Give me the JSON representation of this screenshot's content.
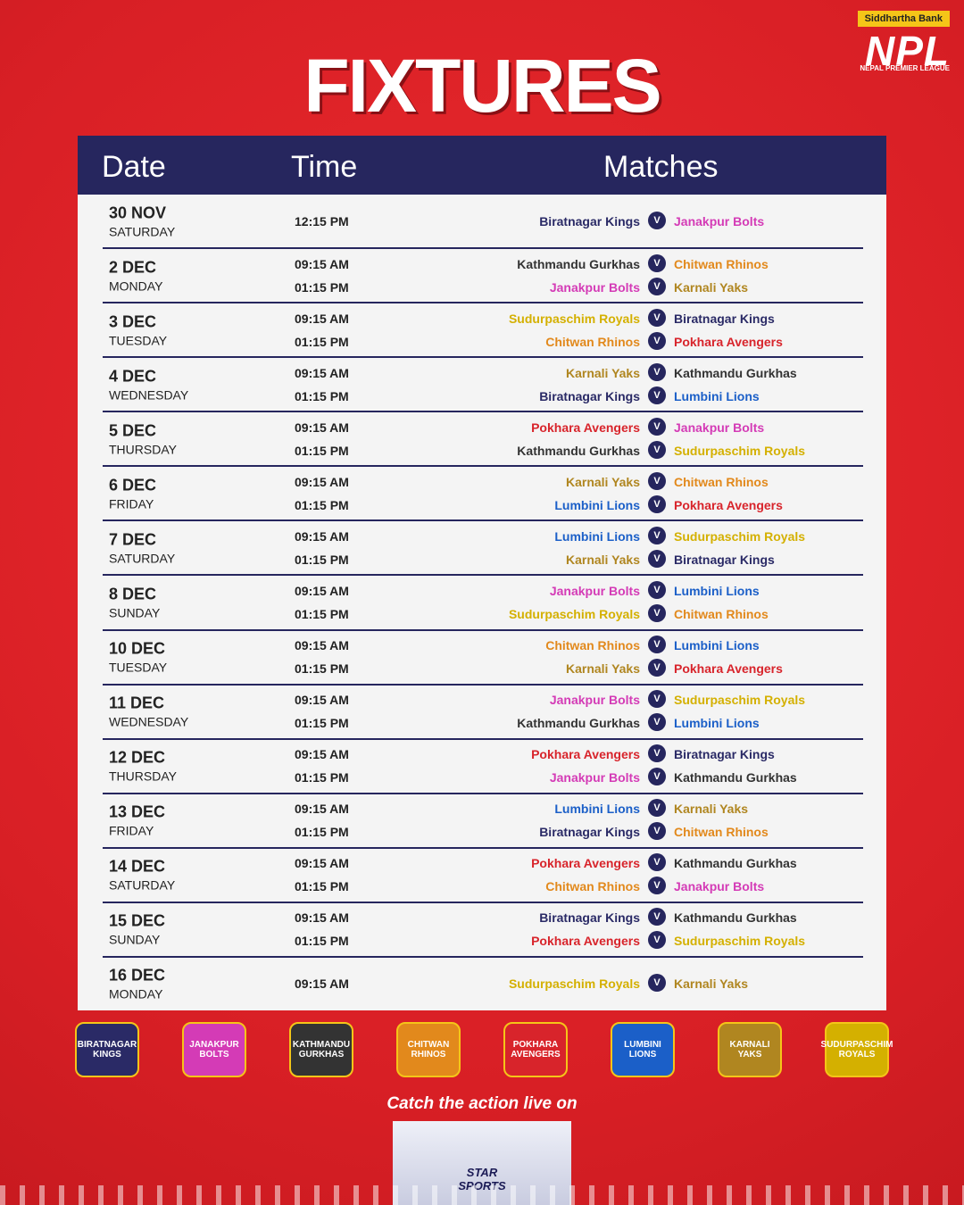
{
  "header": {
    "sponsor": "Siddhartha Bank",
    "league_short": "NPL",
    "league_full": "NEPAL PREMIER LEAGUE",
    "title": "FIXTURES"
  },
  "table": {
    "columns": [
      "Date",
      "Time",
      "Matches"
    ],
    "versus_label": "V",
    "rows": [
      {
        "date": "30 NOV",
        "day": "SATURDAY",
        "matches": [
          {
            "time": "12:15 PM",
            "home": "Biratnagar Kings",
            "away": "Janakpur Bolts"
          }
        ]
      },
      {
        "date": "2 DEC",
        "day": "MONDAY",
        "matches": [
          {
            "time": "09:15 AM",
            "home": "Kathmandu Gurkhas",
            "away": "Chitwan Rhinos"
          },
          {
            "time": "01:15 PM",
            "home": "Janakpur Bolts",
            "away": "Karnali Yaks"
          }
        ]
      },
      {
        "date": "3 DEC",
        "day": "TUESDAY",
        "matches": [
          {
            "time": "09:15 AM",
            "home": "Sudurpaschim Royals",
            "away": "Biratnagar Kings"
          },
          {
            "time": "01:15 PM",
            "home": "Chitwan Rhinos",
            "away": "Pokhara Avengers"
          }
        ]
      },
      {
        "date": "4 DEC",
        "day": "WEDNESDAY",
        "matches": [
          {
            "time": "09:15 AM",
            "home": "Karnali Yaks",
            "away": "Kathmandu Gurkhas"
          },
          {
            "time": "01:15 PM",
            "home": "Biratnagar Kings",
            "away": "Lumbini Lions"
          }
        ]
      },
      {
        "date": "5 DEC",
        "day": "THURSDAY",
        "matches": [
          {
            "time": "09:15 AM",
            "home": "Pokhara Avengers",
            "away": "Janakpur Bolts"
          },
          {
            "time": "01:15 PM",
            "home": "Kathmandu Gurkhas",
            "away": "Sudurpaschim Royals"
          }
        ]
      },
      {
        "date": "6 DEC",
        "day": "FRIDAY",
        "matches": [
          {
            "time": "09:15 AM",
            "home": "Karnali Yaks",
            "away": "Chitwan Rhinos"
          },
          {
            "time": "01:15 PM",
            "home": "Lumbini Lions",
            "away": "Pokhara Avengers"
          }
        ]
      },
      {
        "date": "7 DEC",
        "day": "SATURDAY",
        "matches": [
          {
            "time": "09:15 AM",
            "home": "Lumbini Lions",
            "away": "Sudurpaschim Royals"
          },
          {
            "time": "01:15 PM",
            "home": "Karnali Yaks",
            "away": "Biratnagar Kings"
          }
        ]
      },
      {
        "date": "8 DEC",
        "day": "SUNDAY",
        "matches": [
          {
            "time": "09:15 AM",
            "home": "Janakpur Bolts",
            "away": "Lumbini Lions"
          },
          {
            "time": "01:15 PM",
            "home": "Sudurpaschim Royals",
            "away": "Chitwan Rhinos"
          }
        ]
      },
      {
        "date": "10 DEC",
        "day": "TUESDAY",
        "matches": [
          {
            "time": "09:15 AM",
            "home": "Chitwan Rhinos",
            "away": "Lumbini Lions"
          },
          {
            "time": "01:15 PM",
            "home": "Karnali Yaks",
            "away": "Pokhara Avengers"
          }
        ]
      },
      {
        "date": "11 DEC",
        "day": "WEDNESDAY",
        "matches": [
          {
            "time": "09:15 AM",
            "home": "Janakpur Bolts",
            "away": "Sudurpaschim Royals"
          },
          {
            "time": "01:15 PM",
            "home": "Kathmandu Gurkhas",
            "away": "Lumbini Lions"
          }
        ]
      },
      {
        "date": "12 DEC",
        "day": "THURSDAY",
        "matches": [
          {
            "time": "09:15 AM",
            "home": "Pokhara Avengers",
            "away": "Biratnagar Kings"
          },
          {
            "time": "01:15 PM",
            "home": "Janakpur Bolts",
            "away": "Kathmandu Gurkhas"
          }
        ]
      },
      {
        "date": "13 DEC",
        "day": "FRIDAY",
        "matches": [
          {
            "time": "09:15 AM",
            "home": "Lumbini Lions",
            "away": "Karnali Yaks"
          },
          {
            "time": "01:15 PM",
            "home": "Biratnagar Kings",
            "away": "Chitwan Rhinos"
          }
        ]
      },
      {
        "date": "14 DEC",
        "day": "SATURDAY",
        "matches": [
          {
            "time": "09:15 AM",
            "home": "Pokhara Avengers",
            "away": "Kathmandu Gurkhas"
          },
          {
            "time": "01:15 PM",
            "home": "Chitwan Rhinos",
            "away": "Janakpur Bolts"
          }
        ]
      },
      {
        "date": "15 DEC",
        "day": "SUNDAY",
        "matches": [
          {
            "time": "09:15 AM",
            "home": "Biratnagar Kings",
            "away": "Kathmandu Gurkhas"
          },
          {
            "time": "01:15 PM",
            "home": "Pokhara Avengers",
            "away": "Sudurpaschim Royals"
          }
        ]
      },
      {
        "date": "16 DEC",
        "day": "MONDAY",
        "matches": [
          {
            "time": "09:15 AM",
            "home": "Sudurpaschim Royals",
            "away": "Karnali Yaks"
          }
        ]
      }
    ]
  },
  "teams": [
    {
      "name": "Biratnagar Kings",
      "color": "#2a2a66"
    },
    {
      "name": "Janakpur Bolts",
      "color": "#d43bb6"
    },
    {
      "name": "Kathmandu Gurkhas",
      "color": "#333333"
    },
    {
      "name": "Chitwan Rhinos",
      "color": "#e2891c"
    },
    {
      "name": "Pokhara Avengers",
      "color": "#d8242b"
    },
    {
      "name": "Lumbini Lions",
      "color": "#1b5fc8"
    },
    {
      "name": "Karnali Yaks",
      "color": "#b08620"
    },
    {
      "name": "Sudurpaschim Royals",
      "color": "#d4b000"
    }
  ],
  "footer": {
    "caption": "Catch the action live on",
    "broadcaster": "STAR SPORTS"
  }
}
